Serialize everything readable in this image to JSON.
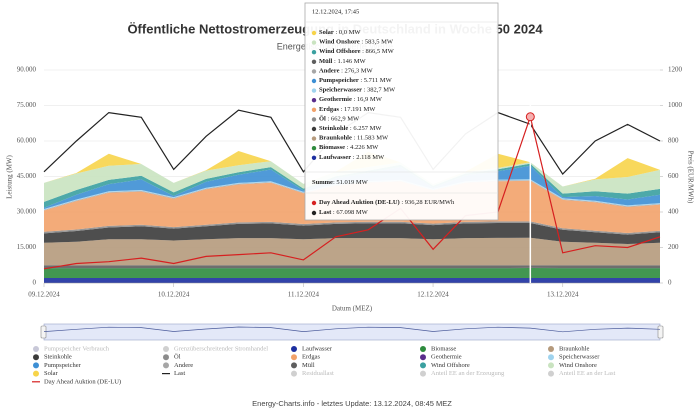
{
  "chart_data": {
    "type": "area",
    "title": "Öffentliche Nettostromerzeugung in Deutschland in Woche 50 2024",
    "subtitle": "Energetisch korrigierte Werte",
    "y_label": "Leistung (MW)",
    "y2_label": "Preis (EUR/MWh)",
    "x_label": "Datum (MEZ)",
    "footer": "Energy-Charts.info - letztes Update: 13.12.2024, 08:45 MEZ",
    "categories": [
      "09.12.2024",
      null,
      null,
      null,
      "10.12.2024",
      null,
      null,
      null,
      "11.12.2024",
      null,
      null,
      null,
      "12.12.2024",
      null,
      null,
      null,
      "13.12.2024",
      null,
      null,
      null
    ],
    "ylim": [
      0,
      90000
    ],
    "yticks": [
      0,
      {
        "value": 15000,
        "label": "15.000"
      },
      {
        "value": 30000,
        "label": "30.000"
      },
      {
        "value": 45000,
        "label": "45.000"
      },
      {
        "value": 60000,
        "label": "60.000"
      },
      {
        "value": 75000,
        "label": "75.000"
      },
      {
        "value": 90000,
        "label": "90.000"
      }
    ],
    "y2lim": [
      0,
      1200
    ],
    "y2ticks": [
      0,
      200,
      400,
      600,
      800,
      1000,
      1200
    ],
    "grid": true,
    "stacked": true,
    "series": [
      {
        "name": "Laufwasser",
        "color": "#1c2fa0",
        "values": [
          2100,
          2100,
          2100,
          2100,
          2100,
          2100,
          2100,
          2100,
          2100,
          2100,
          2100,
          2100,
          2100,
          2100,
          2100,
          2118,
          2100,
          2100,
          2100,
          2100
        ]
      },
      {
        "name": "Biomasse",
        "color": "#2e8b3e",
        "values": [
          4200,
          4200,
          4200,
          4200,
          4200,
          4200,
          4200,
          4200,
          4200,
          4200,
          4200,
          4200,
          4200,
          4200,
          4200,
          4226,
          4200,
          4200,
          4200,
          4200
        ]
      },
      {
        "name": "Braunkohle",
        "color": "#b59a7c",
        "values": [
          9500,
          10000,
          11000,
          11000,
          10500,
          11000,
          11500,
          11500,
          11000,
          11500,
          11500,
          11500,
          11000,
          11500,
          11600,
          11583,
          10000,
          9500,
          9000,
          9500
        ]
      },
      {
        "name": "Steinkohle",
        "color": "#3b3b3b",
        "values": [
          4000,
          4500,
          5000,
          5500,
          5000,
          5500,
          6000,
          6200,
          5800,
          6000,
          6300,
          6300,
          6000,
          6200,
          6300,
          6257,
          5000,
          4500,
          4000,
          4500
        ]
      },
      {
        "name": "Öl",
        "color": "#8c8c8c",
        "values": [
          650,
          650,
          650,
          650,
          650,
          650,
          650,
          650,
          650,
          650,
          650,
          650,
          650,
          650,
          650,
          663,
          650,
          650,
          650,
          650
        ]
      },
      {
        "name": "Erdgas",
        "color": "#f2a26a",
        "values": [
          9000,
          12000,
          14000,
          14000,
          12000,
          15000,
          16000,
          16500,
          13000,
          15500,
          16500,
          17000,
          14000,
          16500,
          17000,
          17191,
          12000,
          12000,
          11000,
          11000
        ]
      },
      {
        "name": "Geothermie",
        "color": "#5a2d8c",
        "values": [
          17,
          17,
          17,
          17,
          17,
          17,
          17,
          17,
          17,
          17,
          17,
          17,
          17,
          17,
          17,
          17,
          17,
          17,
          17,
          17
        ]
      },
      {
        "name": "Speicherwasser",
        "color": "#9fd3ee",
        "values": [
          380,
          380,
          380,
          380,
          380,
          380,
          380,
          380,
          380,
          380,
          380,
          380,
          380,
          380,
          380,
          383,
          380,
          380,
          380,
          380
        ]
      },
      {
        "name": "Pumpspeicher",
        "color": "#3d8fd4",
        "values": [
          500,
          2000,
          3000,
          4500,
          500,
          2500,
          3500,
          5000,
          500,
          2500,
          3500,
          5500,
          500,
          2500,
          3500,
          5711,
          500,
          2000,
          2500,
          3500
        ]
      },
      {
        "name": "Andere",
        "color": "#a6a6a6",
        "values": [
          280,
          280,
          280,
          280,
          280,
          280,
          280,
          280,
          280,
          280,
          280,
          280,
          280,
          280,
          280,
          276,
          280,
          280,
          280,
          280
        ]
      },
      {
        "name": "Müll",
        "color": "#5e5e5e",
        "values": [
          1150,
          1150,
          1150,
          1150,
          1150,
          1150,
          1150,
          1150,
          1150,
          1150,
          1150,
          1150,
          1150,
          1150,
          1150,
          1146,
          1150,
          1150,
          1150,
          1150
        ]
      },
      {
        "name": "Wind Offshore",
        "color": "#3aa0a0",
        "values": [
          2500,
          2000,
          1800,
          1500,
          1500,
          1200,
          1000,
          1000,
          800,
          800,
          900,
          900,
          800,
          800,
          850,
          866,
          1500,
          2000,
          2500,
          2500
        ]
      },
      {
        "name": "Wind Onshore",
        "color": "#c9e3c0",
        "values": [
          8000,
          7000,
          6000,
          5000,
          4000,
          3500,
          3000,
          2500,
          2000,
          1800,
          1500,
          1000,
          700,
          600,
          600,
          583,
          3000,
          5000,
          7000,
          8000
        ]
      },
      {
        "name": "Solar",
        "color": "#f7d44a",
        "values": [
          0,
          200,
          5000,
          0,
          0,
          200,
          6000,
          0,
          0,
          200,
          6500,
          0,
          0,
          200,
          6000,
          0,
          0,
          300,
          8000,
          0
        ]
      },
      {
        "name": "Last",
        "color": "#222222",
        "type": "line",
        "values": [
          47000,
          60000,
          72000,
          70000,
          48000,
          62000,
          73000,
          70000,
          47000,
          63000,
          72000,
          70000,
          48000,
          63000,
          72000,
          67098,
          46000,
          60000,
          67000,
          60000
        ]
      },
      {
        "name": "Day Ahead Auktion (DE-LU)",
        "color": "#d62020",
        "type": "line",
        "axis": "y2",
        "values": [
          80,
          110,
          120,
          140,
          110,
          150,
          160,
          170,
          130,
          260,
          300,
          420,
          190,
          380,
          400,
          936.28,
          170,
          210,
          200,
          260
        ]
      }
    ],
    "legend_hidden": [
      {
        "name": "Pumpspeicher Verbrauch",
        "color": "#c8c8d8"
      },
      {
        "name": "Grenzüberschreitender Stromhandel",
        "color": "#d0d0d0"
      },
      {
        "name": "Residuallast",
        "color": "#d0d0d0"
      },
      {
        "name": "Anteil EE an der Erzeugung",
        "color": "#d0d0d0"
      },
      {
        "name": "Anteil EE an der Last",
        "color": "#d0d0d0"
      }
    ],
    "tooltip": {
      "title": "12.12.2024, 17:45",
      "items": [
        {
          "name": "Solar",
          "value": "0,0 MW",
          "color": "#f7d44a"
        },
        {
          "name": "Wind Onshore",
          "value": "583,5 MW",
          "color": "#c9e3c0"
        },
        {
          "name": "Wind Offshore",
          "value": "866,5 MW",
          "color": "#3aa0a0"
        },
        {
          "name": "Müll",
          "value": "1.146 MW",
          "color": "#5e5e5e"
        },
        {
          "name": "Andere",
          "value": "276,3 MW",
          "color": "#a6a6a6"
        },
        {
          "name": "Pumpspeicher",
          "value": "5.711 MW",
          "color": "#3d8fd4"
        },
        {
          "name": "Speicherwasser",
          "value": "382,7 MW",
          "color": "#9fd3ee"
        },
        {
          "name": "Geothermie",
          "value": "16,9 MW",
          "color": "#5a2d8c"
        },
        {
          "name": "Erdgas",
          "value": "17.191 MW",
          "color": "#f2a26a"
        },
        {
          "name": "Öl",
          "value": "662,9 MW",
          "color": "#8c8c8c"
        },
        {
          "name": "Steinkohle",
          "value": "6.257 MW",
          "color": "#3b3b3b"
        },
        {
          "name": "Braunkohle",
          "value": "11.583 MW",
          "color": "#b59a7c"
        },
        {
          "name": "Biomasse",
          "value": "4.226 MW",
          "color": "#2e8b3e"
        },
        {
          "name": "Laufwasser",
          "value": "2.118 MW",
          "color": "#1c2fa0"
        }
      ],
      "sum_label": "Summe",
      "sum_value": "51.019 MW",
      "extra": [
        {
          "name": "Day Ahead Auktion (DE-LU)",
          "value": "936,28 EUR/MWh",
          "color": "#d62020"
        },
        {
          "name": "Last",
          "value": "67.098 MW",
          "color": "#222222"
        }
      ]
    }
  }
}
